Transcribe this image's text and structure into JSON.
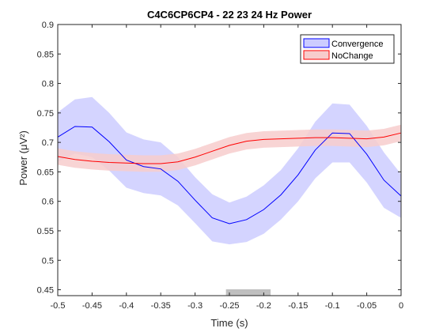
{
  "chart_data": {
    "type": "line",
    "title": "C4C6CP6CP4 - 22  23  24 Hz Power",
    "xlabel": "Time (s)",
    "ylabel": "Power (μV²)",
    "xlim": [
      -0.5,
      0
    ],
    "ylim": [
      0.44,
      0.9
    ],
    "xticks": [
      "-0.5",
      "-0.45",
      "-0.4",
      "-0.35",
      "-0.3",
      "-0.25",
      "-0.2",
      "-0.15",
      "-0.1",
      "-0.05",
      "0"
    ],
    "yticks": [
      "0.45",
      "0.5",
      "0.55",
      "0.6",
      "0.65",
      "0.7",
      "0.75",
      "0.8",
      "0.85",
      "0.9"
    ],
    "grid": false,
    "legend_position": "top-right",
    "x": [
      -0.5,
      -0.475,
      -0.45,
      -0.425,
      -0.4,
      -0.375,
      -0.35,
      -0.325,
      -0.3,
      -0.275,
      -0.25,
      -0.225,
      -0.2,
      -0.175,
      -0.15,
      -0.125,
      -0.1,
      -0.075,
      -0.05,
      -0.025,
      0
    ],
    "series": [
      {
        "name": "Convergence",
        "color": "#0000ff",
        "fill": "#ccccff",
        "values": [
          0.709,
          0.727,
          0.726,
          0.701,
          0.67,
          0.659,
          0.655,
          0.634,
          0.602,
          0.572,
          0.562,
          0.569,
          0.586,
          0.611,
          0.645,
          0.687,
          0.716,
          0.715,
          0.68,
          0.636,
          0.609
        ],
        "upper": [
          0.751,
          0.773,
          0.777,
          0.75,
          0.717,
          0.705,
          0.7,
          0.675,
          0.641,
          0.612,
          0.598,
          0.608,
          0.627,
          0.653,
          0.69,
          0.735,
          0.766,
          0.764,
          0.728,
          0.683,
          0.646
        ],
        "lower": [
          0.667,
          0.681,
          0.675,
          0.652,
          0.623,
          0.614,
          0.61,
          0.593,
          0.563,
          0.532,
          0.527,
          0.531,
          0.545,
          0.569,
          0.6,
          0.639,
          0.666,
          0.666,
          0.632,
          0.589,
          0.572
        ]
      },
      {
        "name": "NoChange",
        "color": "#ff0000",
        "fill": "#f7cccc",
        "values": [
          0.676,
          0.671,
          0.668,
          0.666,
          0.665,
          0.664,
          0.664,
          0.667,
          0.675,
          0.685,
          0.695,
          0.702,
          0.705,
          0.706,
          0.707,
          0.708,
          0.708,
          0.707,
          0.706,
          0.709,
          0.716
        ],
        "upper": [
          0.69,
          0.685,
          0.682,
          0.68,
          0.679,
          0.678,
          0.678,
          0.681,
          0.689,
          0.699,
          0.709,
          0.716,
          0.719,
          0.72,
          0.721,
          0.722,
          0.722,
          0.721,
          0.72,
          0.723,
          0.73
        ],
        "lower": [
          0.662,
          0.657,
          0.654,
          0.652,
          0.651,
          0.65,
          0.65,
          0.653,
          0.661,
          0.671,
          0.681,
          0.688,
          0.691,
          0.692,
          0.693,
          0.694,
          0.694,
          0.693,
          0.692,
          0.695,
          0.702
        ]
      }
    ],
    "significance_bar": {
      "x_range": [
        -0.255,
        -0.19
      ],
      "color": "#bfbfbf"
    }
  }
}
